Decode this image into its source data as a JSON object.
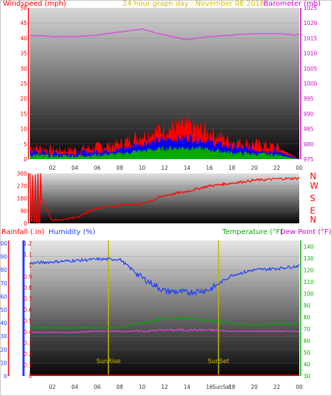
{
  "top": {
    "left_label": "Windspeed (mph)",
    "center_label": "24 hour graph day : November 08 2018",
    "right_label": "Barometer (mb)",
    "left_ticks": [
      "0",
      "5",
      "10",
      "15",
      "20",
      "25",
      "30",
      "35",
      "40",
      "45",
      "50"
    ],
    "right_ticks": [
      "975",
      "980",
      "985",
      "990",
      "995",
      "1000",
      "1005",
      "1010",
      "1015",
      "1020",
      "1025"
    ],
    "x_ticks": [
      "02",
      "04",
      "06",
      "08",
      "10",
      "12",
      "14",
      "16",
      "18",
      "20",
      "22",
      "00"
    ]
  },
  "middle": {
    "left_ticks": [
      "0",
      "90",
      "180",
      "270",
      "360"
    ],
    "compass": [
      "N",
      "W",
      "S",
      "E",
      "N"
    ]
  },
  "bottom": {
    "label_rain": "Rainfall (.in)",
    "label_humidity": "Humidity (%)",
    "label_temp": "Temperature (°F)",
    "label_dew": "Dew Point (°F)",
    "rain_ticks": [
      "0",
      "0.1",
      "0.2",
      "0.3",
      "0.4",
      "0.5",
      "0.6",
      "0.7",
      "0.8",
      "0.9",
      "1",
      "1.1",
      "1.2"
    ],
    "hum_ticks": [
      "0",
      "10",
      "20",
      "30",
      "40",
      "50",
      "60",
      "70",
      "80",
      "90",
      "100"
    ],
    "temp_ticks": [
      "30",
      "40",
      "50",
      "60",
      "70",
      "80",
      "90",
      "100",
      "110",
      "120",
      "130",
      "140"
    ],
    "x_ticks": [
      "02",
      "04",
      "06",
      "08",
      "10",
      "12",
      "14",
      "16",
      "18",
      "20",
      "22",
      "00"
    ],
    "sunrise": "SunRise",
    "sunset": "SunSet",
    "sunset_axis": "SunSet"
  },
  "colors": {
    "wind": "#ff0000",
    "gust": "#0000ff",
    "avg": "#00aa00",
    "baro": "#e040e0",
    "humidity": "#1a3cff",
    "temperature": "#00aa00",
    "dewpoint": "#e040e0",
    "rain": "#ff0000",
    "sun": "#bdb800"
  },
  "chart_data": [
    {
      "type": "line",
      "title": "24 hour graph day : November 08 2018",
      "x": [
        0,
        2,
        4,
        6,
        8,
        10,
        12,
        14,
        16,
        18,
        20,
        22,
        24
      ],
      "series": [
        {
          "name": "Windspeed (mph)",
          "values": [
            4,
            3,
            3,
            4,
            5,
            8,
            10,
            11,
            9,
            6,
            5,
            4,
            0
          ]
        },
        {
          "name": "Barometer (mb)",
          "values": [
            1016,
            1015.5,
            1015.5,
            1016,
            1017,
            1018,
            1016,
            1014.5,
            1015.5,
            1016,
            1016.5,
            1016.5,
            1016
          ]
        }
      ],
      "ylim_left": [
        0,
        50
      ],
      "ylim_right": [
        975,
        1025
      ]
    },
    {
      "type": "line",
      "series": [
        {
          "name": "Wind direction",
          "values": [
            350,
            20,
            40,
            110,
            130,
            140,
            200,
            230,
            270,
            290,
            310,
            320,
            325
          ]
        }
      ],
      "x": [
        0,
        2,
        4,
        6,
        8,
        10,
        12,
        14,
        16,
        18,
        20,
        22,
        24
      ],
      "ylim": [
        0,
        360
      ]
    },
    {
      "type": "line",
      "x": [
        0,
        2,
        4,
        6,
        8,
        10,
        12,
        14,
        16,
        18,
        20,
        22,
        24
      ],
      "series": [
        {
          "name": "Humidity (%)",
          "values": [
            85,
            86,
            87,
            88,
            88,
            74,
            64,
            63,
            65,
            76,
            80,
            81,
            83
          ]
        },
        {
          "name": "Temperature (°F)",
          "values": [
            71,
            71,
            71,
            71,
            71,
            75,
            79,
            79,
            77,
            75,
            73,
            74,
            74
          ]
        },
        {
          "name": "Dew Point (°F)",
          "values": [
            67,
            67,
            67,
            68,
            68,
            68,
            69,
            69,
            69,
            68,
            68,
            68,
            68
          ]
        },
        {
          "name": "Rainfall (.in)",
          "values": [
            0,
            0,
            0,
            0,
            0,
            0,
            0,
            0,
            0,
            0,
            0,
            0,
            0
          ]
        }
      ],
      "ylim_humidity": [
        0,
        100
      ],
      "ylim_temp": [
        30,
        145
      ]
    }
  ]
}
